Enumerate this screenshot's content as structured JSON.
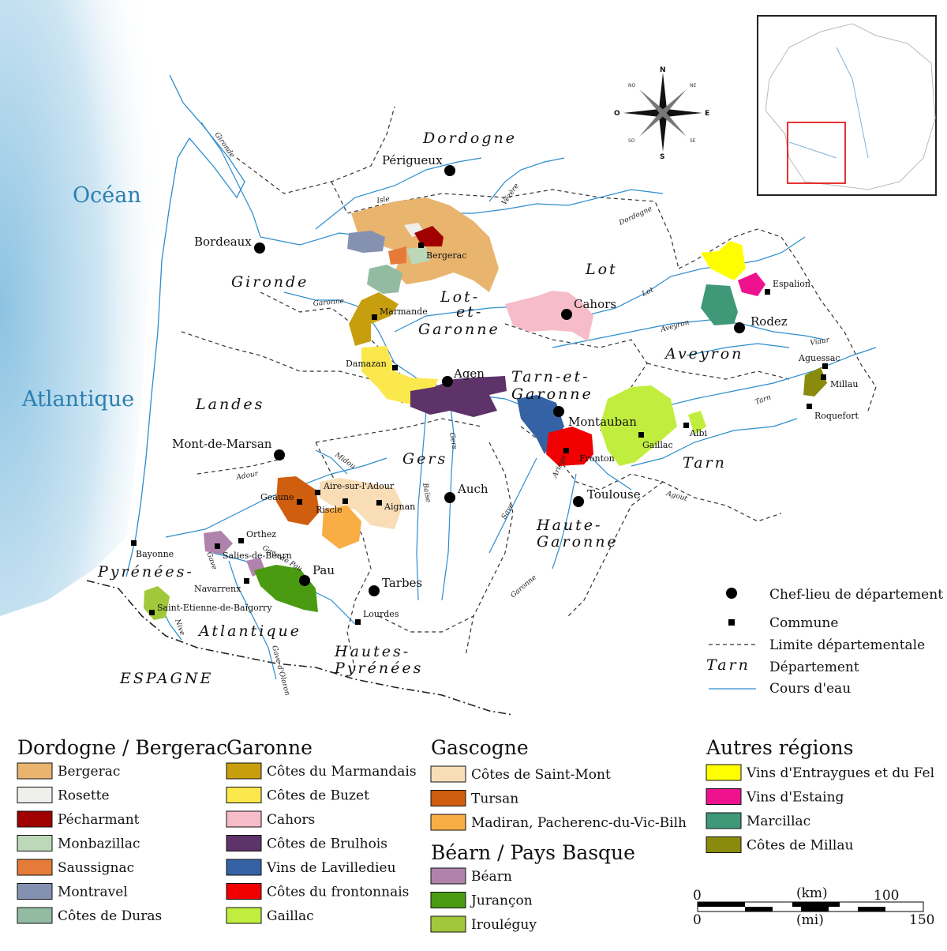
{
  "map": {
    "seas": [
      "Océan",
      "Atlantique"
    ],
    "departments": [
      {
        "name": "Dordogne"
      },
      {
        "name": "Gironde"
      },
      {
        "name": "Lot"
      },
      {
        "name": "Lot-"
      },
      {
        "name": "et-"
      },
      {
        "name": "Garonne"
      },
      {
        "name": "Tarn-et-"
      },
      {
        "name": "Garonne"
      },
      {
        "name": "Aveyron"
      },
      {
        "name": "Landes"
      },
      {
        "name": "Gers"
      },
      {
        "name": "Tarn"
      },
      {
        "name": "Haute-"
      },
      {
        "name": "Garonne"
      },
      {
        "name": "Pyrénées-"
      },
      {
        "name": "Atlantique"
      },
      {
        "name": "Hautes-"
      },
      {
        "name": "Pyrénées"
      },
      {
        "name": "ESPAGNE"
      }
    ],
    "prefectures": [
      "Périgueux",
      "Bordeaux",
      "Cahors",
      "Rodez",
      "Agen",
      "Montauban",
      "Mont-de-Marsan",
      "Auch",
      "Toulouse",
      "Pau",
      "Tarbes"
    ],
    "communes": [
      "Bergerac",
      "Marmande",
      "Damazan",
      "Espalion",
      "Aguessac",
      "Millau",
      "Roquefort",
      "Gaillac",
      "Albi",
      "Fronton",
      "Aire-sur-l'Adour",
      "Geaune",
      "Riscle",
      "Aignan",
      "Bayonne",
      "Orthez",
      "Salies-de-Béarn",
      "Navarrenx",
      "Saint-Etienne-de-Baïgorry",
      "Lourdes"
    ],
    "rivers": [
      "Gironde",
      "Isle",
      "Vézère",
      "Dordogne",
      "Garonne",
      "Lot",
      "Aveyron",
      "Viaur",
      "Tarn",
      "Agout",
      "Gers",
      "Baïse",
      "Save",
      "Ariège",
      "Midou",
      "Adour",
      "Gave de Pau",
      "Gave",
      "Nive",
      "Gave d'Oloron",
      "Garonne"
    ]
  },
  "inset": {
    "label": "France locator map"
  },
  "compass": {
    "N": "N",
    "S": "S",
    "E": "E",
    "O": "O",
    "NO": "NO",
    "NE": "NE",
    "SO": "SO",
    "SE": "SE"
  },
  "symbols": [
    {
      "label": "Chef-lieu de département"
    },
    {
      "label": "Commune"
    },
    {
      "label": "Limite départementale"
    },
    {
      "label": "Département",
      "sample": "Tarn"
    },
    {
      "label": "Cours d'eau"
    }
  ],
  "scale": {
    "km_label": "(km)",
    "mi_label": "(mi)",
    "km_ticks": [
      "0",
      "100"
    ],
    "mi_ticks": [
      "0",
      "150"
    ]
  },
  "legend": [
    {
      "title": "Dordogne / Bergerac",
      "items": [
        {
          "label": "Bergerac",
          "color": "#e8b46e"
        },
        {
          "label": "Rosette",
          "color": "#efefec"
        },
        {
          "label": "Pécharmant",
          "color": "#a00000"
        },
        {
          "label": "Monbazillac",
          "color": "#bcd8b9"
        },
        {
          "label": "Saussignac",
          "color": "#e67b39"
        },
        {
          "label": "Montravel",
          "color": "#8591b1"
        },
        {
          "label": "Côtes de Duras",
          "color": "#93bba2"
        }
      ]
    },
    {
      "title": "Garonne",
      "items": [
        {
          "label": "Côtes du Marmandais",
          "color": "#c79e0e"
        },
        {
          "label": "Côtes de Buzet",
          "color": "#fbe84d"
        },
        {
          "label": "Cahors",
          "color": "#f6bcc8"
        },
        {
          "label": "Côtes de Brulhois",
          "color": "#5d3369"
        },
        {
          "label": "Vins de Lavilledieu",
          "color": "#3462a4"
        },
        {
          "label": "Côtes du frontonnais",
          "color": "#f00000"
        },
        {
          "label": "Gaillac",
          "color": "#c1ee3e"
        }
      ]
    },
    {
      "title": "Gascogne",
      "items": [
        {
          "label": "Côtes de Saint-Mont",
          "color": "#f8ddb7"
        },
        {
          "label": "Tursan",
          "color": "#cf5e0e"
        },
        {
          "label": "Madiran, Pacherenc-du-Vic-Bilh",
          "color": "#f8ae45"
        }
      ]
    },
    {
      "title": "Béarn / Pays Basque",
      "items": [
        {
          "label": "Béarn",
          "color": "#b083ac"
        },
        {
          "label": "Jurançon",
          "color": "#4a9a12"
        },
        {
          "label": "Irouléguy",
          "color": "#a1c83a"
        }
      ]
    },
    {
      "title": "Autres régions",
      "items": [
        {
          "label": "Vins d'Entraygues et du Fel",
          "color": "#fffe00"
        },
        {
          "label": "Vins d'Estaing",
          "color": "#ee128e"
        },
        {
          "label": "Marcillac",
          "color": "#3f9877"
        },
        {
          "label": "Côtes de Millau",
          "color": "#8a8a0c"
        }
      ]
    }
  ]
}
